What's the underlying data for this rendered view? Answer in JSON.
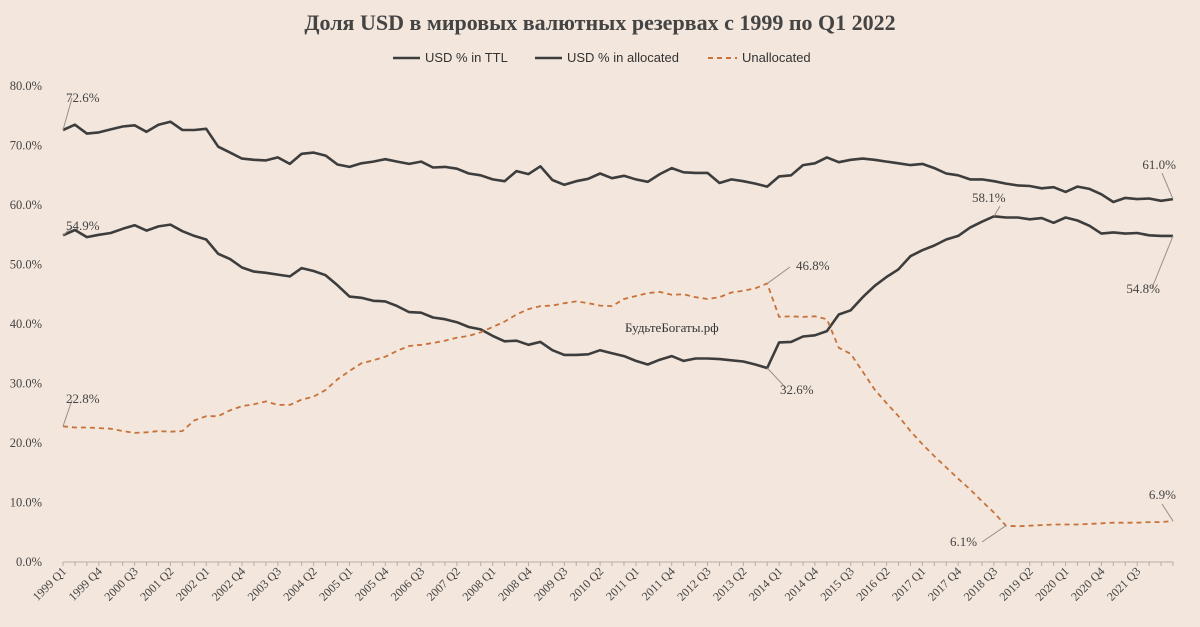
{
  "chart_data": {
    "type": "line",
    "title": "Доля USD в мировых валютных резервах с 1999 по Q1 2022",
    "watermark": "БудьтеБогаты.рф",
    "ylim": [
      0,
      80
    ],
    "yticks": [
      "0.0%",
      "10.0%",
      "20.0%",
      "30.0%",
      "40.0%",
      "50.0%",
      "60.0%",
      "70.0%",
      "80.0%"
    ],
    "legend_position": "top",
    "x_tick_labels": [
      "1999 Q1",
      "1999 Q4",
      "2000 Q3",
      "2001 Q2",
      "2002 Q1",
      "2002 Q4",
      "2003 Q3",
      "2004 Q2",
      "2005 Q1",
      "2005 Q4",
      "2006 Q3",
      "2007 Q2",
      "2008 Q1",
      "2008 Q4",
      "2009 Q3",
      "2010 Q2",
      "2011 Q1",
      "2011 Q4",
      "2012 Q3",
      "2013 Q2",
      "2014 Q1",
      "2014 Q4",
      "2015 Q3",
      "2016 Q2",
      "2017 Q1",
      "2017 Q4",
      "2018 Q3",
      "2019 Q2",
      "2020 Q1",
      "2020 Q4",
      "2021 Q3"
    ],
    "series": [
      {
        "name": "USD % in TTL",
        "color": "#3d3d3d",
        "dash": "solid",
        "values": [
          72.6,
          73.5,
          72.0,
          72.2,
          72.7,
          73.2,
          73.4,
          72.3,
          73.5,
          74.0,
          72.6,
          72.6,
          72.8,
          69.8,
          68.8,
          67.8,
          67.6,
          67.5,
          68.0,
          66.9,
          68.6,
          68.8,
          68.3,
          66.8,
          66.4,
          67.0,
          67.3,
          67.7,
          67.3,
          66.9,
          67.3,
          66.3,
          66.4,
          66.1,
          65.3,
          65.0,
          64.3,
          64.0,
          65.7,
          65.2,
          66.5,
          64.2,
          63.4,
          64.0,
          64.4,
          65.3,
          64.5,
          64.9,
          64.3,
          63.9,
          65.2,
          66.2,
          65.5,
          65.4,
          65.4,
          63.7,
          64.3,
          64.0,
          63.6,
          63.1,
          64.8,
          65.0,
          66.7,
          67.0,
          68.0,
          67.2,
          67.6,
          67.8,
          67.6,
          67.3,
          67.0,
          66.7,
          66.9,
          66.2,
          65.3,
          65.0,
          64.3,
          64.3,
          64.0,
          63.6,
          63.3,
          63.2,
          62.8,
          63.0,
          62.2,
          63.1,
          62.7,
          61.8,
          60.5,
          61.2,
          61.0,
          61.1,
          60.7,
          61.0
        ]
      },
      {
        "name": "USD % in allocated",
        "color": "#3d3d3d",
        "dash": "solid",
        "values": [
          54.9,
          55.8,
          54.6,
          55.0,
          55.3,
          56.0,
          56.6,
          55.7,
          56.4,
          56.7,
          55.6,
          54.8,
          54.2,
          51.8,
          50.9,
          49.5,
          48.8,
          48.6,
          48.3,
          48.0,
          49.4,
          48.9,
          48.2,
          46.5,
          44.6,
          44.4,
          43.9,
          43.8,
          43.0,
          42.0,
          41.9,
          41.1,
          40.8,
          40.3,
          39.5,
          39.1,
          38.0,
          37.1,
          37.2,
          36.5,
          37.0,
          35.6,
          34.8,
          34.8,
          34.9,
          35.6,
          35.1,
          34.6,
          33.8,
          33.2,
          34.0,
          34.6,
          33.8,
          34.2,
          34.2,
          34.1,
          33.9,
          33.7,
          33.2,
          32.6,
          36.9,
          37.0,
          37.9,
          38.1,
          38.8,
          41.6,
          42.3,
          44.5,
          46.4,
          47.9,
          49.2,
          51.4,
          52.4,
          53.2,
          54.2,
          54.8,
          56.2,
          57.2,
          58.1,
          57.9,
          57.9,
          57.6,
          57.8,
          57.0,
          57.9,
          57.4,
          56.5,
          55.2,
          55.4,
          55.2,
          55.3,
          54.9,
          54.8,
          54.8
        ]
      },
      {
        "name": "Unallocated",
        "color": "#c8723a",
        "dash": "dashed",
        "values": [
          22.8,
          22.6,
          22.6,
          22.5,
          22.4,
          22.0,
          21.7,
          21.8,
          22.0,
          21.9,
          22.0,
          23.8,
          24.5,
          24.5,
          25.5,
          26.2,
          26.5,
          27.0,
          26.4,
          26.4,
          27.3,
          27.8,
          28.9,
          30.7,
          32.1,
          33.4,
          33.9,
          34.5,
          35.5,
          36.3,
          36.5,
          36.8,
          37.2,
          37.7,
          38.0,
          38.6,
          39.5,
          40.4,
          41.6,
          42.5,
          43.0,
          43.1,
          43.5,
          43.8,
          43.5,
          43.1,
          43.0,
          44.2,
          44.7,
          45.2,
          45.4,
          44.9,
          45.0,
          44.5,
          44.2,
          44.5,
          45.3,
          45.6,
          46.0,
          46.8,
          41.2,
          41.3,
          41.2,
          41.3,
          40.8,
          36.0,
          35.0,
          32.0,
          29.0,
          26.7,
          24.5,
          22.0,
          19.8,
          17.8,
          15.9,
          14.0,
          12.2,
          10.2,
          8.3,
          6.1,
          6.0,
          6.1,
          6.2,
          6.3,
          6.3,
          6.3,
          6.4,
          6.5,
          6.6,
          6.6,
          6.6,
          6.7,
          6.7,
          6.9
        ]
      }
    ],
    "annotations": [
      "72.6%",
      "54.9%",
      "22.8%",
      "46.8%",
      "32.6%",
      "58.1%",
      "6.1%",
      "61.0%",
      "54.8%",
      "6.9%"
    ]
  }
}
